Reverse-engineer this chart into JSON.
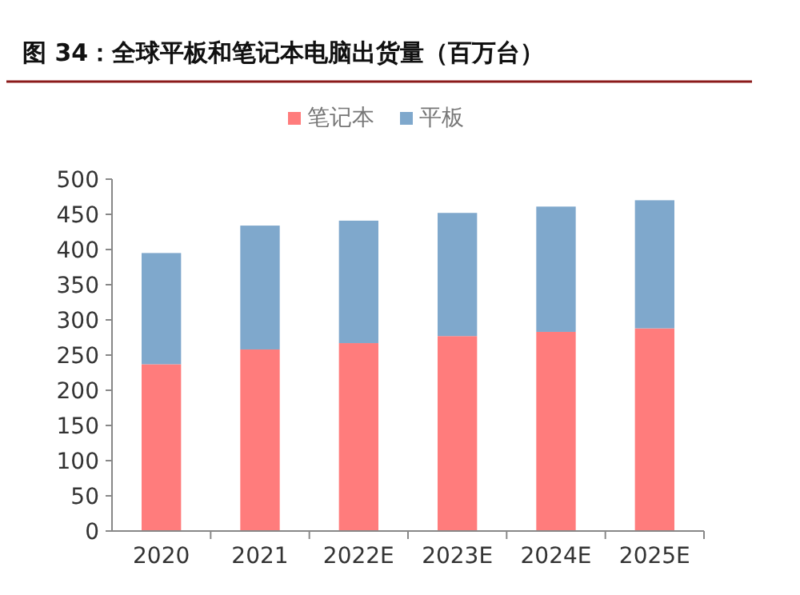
{
  "chart_data": {
    "type": "bar",
    "title": "图 34：全球平板和笔记本电脑出货量（百万台）",
    "categories": [
      "2020",
      "2021",
      "2022E",
      "2023E",
      "2024E",
      "2025E"
    ],
    "series": [
      {
        "name": "笔记本",
        "color": "#ff7c7c",
        "values": [
          237,
          258,
          267,
          277,
          283,
          288
        ]
      },
      {
        "name": "平板",
        "color": "#7fa8cc",
        "values": [
          158,
          176,
          174,
          175,
          178,
          182
        ]
      }
    ],
    "stacked": true,
    "ylim": [
      0,
      500
    ],
    "yticks": [
      0,
      50,
      100,
      150,
      200,
      250,
      300,
      350,
      400,
      450,
      500
    ],
    "grid": false,
    "legend": "top"
  }
}
